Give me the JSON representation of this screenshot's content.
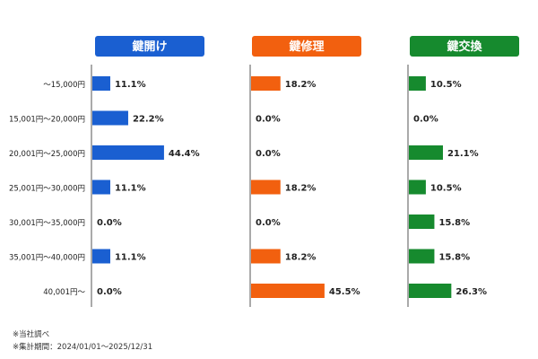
{
  "chart_data": {
    "type": "bar",
    "orientation": "horizontal",
    "categories": [
      "～15,000円",
      "15,001円～20,000円",
      "20,001円～25,000円",
      "25,001円～30,000円",
      "30,001円～35,000円",
      "35,001円～40,000円",
      "40,001円～"
    ],
    "series": [
      {
        "name": "鍵開け",
        "color": "#1a5fd1",
        "values": [
          11.1,
          22.2,
          44.4,
          11.1,
          0.0,
          11.1,
          0.0
        ]
      },
      {
        "name": "鍵修理",
        "color": "#f2600f",
        "values": [
          18.2,
          0.0,
          0.0,
          18.2,
          0.0,
          18.2,
          45.5
        ]
      },
      {
        "name": "鍵交換",
        "color": "#168a2e",
        "values": [
          10.5,
          0.0,
          21.1,
          10.5,
          15.8,
          15.8,
          26.3
        ]
      }
    ],
    "value_format": "percent_1dp",
    "axis_lines": true,
    "grid": false
  },
  "notes": {
    "line1": "※当社調べ",
    "line2": "※集計期間：2024/01/01～2025/12/31"
  }
}
